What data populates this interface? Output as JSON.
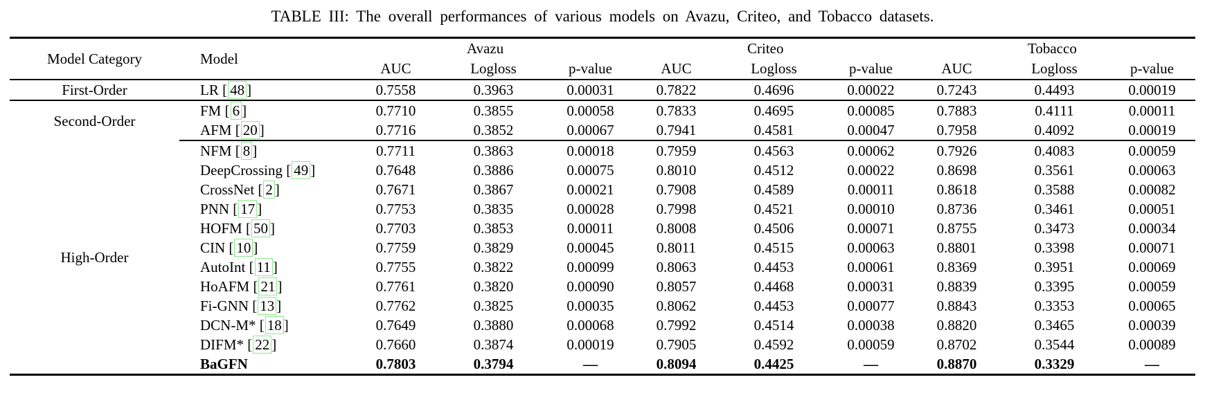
{
  "colors": {
    "citation_box_border": "#8de88d",
    "text": "#000000",
    "background": "#ffffff",
    "rule": "#000000"
  },
  "caption": "TABLE III: The overall performances of various models on Avazu, Criteo, and Tobacco datasets.",
  "table": {
    "headers": {
      "model_category": "Model Category",
      "model": "Model",
      "datasets": [
        "Avazu",
        "Criteo",
        "Tobacco"
      ],
      "metrics": [
        "AUC",
        "Logloss",
        "p-value"
      ]
    },
    "groups": [
      {
        "category": "First-Order",
        "rows": [
          {
            "model": "LR",
            "cite": "48",
            "bold": false,
            "avazu": {
              "auc": "0.7558",
              "logloss": "0.3963",
              "p_value": "0.00031"
            },
            "criteo": {
              "auc": "0.7822",
              "logloss": "0.4696",
              "p_value": "0.00022"
            },
            "tobacco": {
              "auc": "0.7243",
              "logloss": "0.4493",
              "p_value": "0.00019"
            }
          }
        ]
      },
      {
        "category": "Second-Order",
        "rows": [
          {
            "model": "FM",
            "cite": "6",
            "bold": false,
            "avazu": {
              "auc": "0.7710",
              "logloss": "0.3855",
              "p_value": "0.00058"
            },
            "criteo": {
              "auc": "0.7833",
              "logloss": "0.4695",
              "p_value": "0.00085"
            },
            "tobacco": {
              "auc": "0.7883",
              "logloss": "0.4111",
              "p_value": "0.00011"
            }
          },
          {
            "model": "AFM",
            "cite": "20",
            "bold": false,
            "avazu": {
              "auc": "0.7716",
              "logloss": "0.3852",
              "p_value": "0.00067"
            },
            "criteo": {
              "auc": "0.7941",
              "logloss": "0.4581",
              "p_value": "0.00047"
            },
            "tobacco": {
              "auc": "0.7958",
              "logloss": "0.4092",
              "p_value": "0.00019"
            }
          }
        ]
      },
      {
        "category": "High-Order",
        "rows": [
          {
            "model": "NFM",
            "cite": "8",
            "bold": false,
            "avazu": {
              "auc": "0.7711",
              "logloss": "0.3863",
              "p_value": "0.00018"
            },
            "criteo": {
              "auc": "0.7959",
              "logloss": "0.4563",
              "p_value": "0.00062"
            },
            "tobacco": {
              "auc": "0.7926",
              "logloss": "0.4083",
              "p_value": "0.00059"
            }
          },
          {
            "model": "DeepCrossing",
            "cite": "49",
            "bold": false,
            "avazu": {
              "auc": "0.7648",
              "logloss": "0.3886",
              "p_value": "0.00075"
            },
            "criteo": {
              "auc": "0.8010",
              "logloss": "0.4512",
              "p_value": "0.00022"
            },
            "tobacco": {
              "auc": "0.8698",
              "logloss": "0.3561",
              "p_value": "0.00063"
            }
          },
          {
            "model": "CrossNet",
            "cite": "2",
            "bold": false,
            "avazu": {
              "auc": "0.7671",
              "logloss": "0.3867",
              "p_value": "0.00021"
            },
            "criteo": {
              "auc": "0.7908",
              "logloss": "0.4589",
              "p_value": "0.00011"
            },
            "tobacco": {
              "auc": "0.8618",
              "logloss": "0.3588",
              "p_value": "0.00082"
            }
          },
          {
            "model": "PNN",
            "cite": "17",
            "bold": false,
            "avazu": {
              "auc": "0.7753",
              "logloss": "0.3835",
              "p_value": "0.00028"
            },
            "criteo": {
              "auc": "0.7998",
              "logloss": "0.4521",
              "p_value": "0.00010"
            },
            "tobacco": {
              "auc": "0.8736",
              "logloss": "0.3461",
              "p_value": "0.00051"
            }
          },
          {
            "model": "HOFM",
            "cite": "50",
            "bold": false,
            "avazu": {
              "auc": "0.7703",
              "logloss": "0.3853",
              "p_value": "0.00011"
            },
            "criteo": {
              "auc": "0.8008",
              "logloss": "0.4506",
              "p_value": "0.00071"
            },
            "tobacco": {
              "auc": "0.8755",
              "logloss": "0.3473",
              "p_value": "0.00034"
            }
          },
          {
            "model": "CIN",
            "cite": "10",
            "bold": false,
            "avazu": {
              "auc": "0.7759",
              "logloss": "0.3829",
              "p_value": "0.00045"
            },
            "criteo": {
              "auc": "0.8011",
              "logloss": "0.4515",
              "p_value": "0.00063"
            },
            "tobacco": {
              "auc": "0.8801",
              "logloss": "0.3398",
              "p_value": "0.00071"
            }
          },
          {
            "model": "AutoInt",
            "cite": "11",
            "bold": false,
            "avazu": {
              "auc": "0.7755",
              "logloss": "0.3822",
              "p_value": "0.00099"
            },
            "criteo": {
              "auc": "0.8063",
              "logloss": "0.4453",
              "p_value": "0.00061"
            },
            "tobacco": {
              "auc": "0.8369",
              "logloss": "0.3951",
              "p_value": "0.00069"
            }
          },
          {
            "model": "HoAFM",
            "cite": "21",
            "bold": false,
            "avazu": {
              "auc": "0.7761",
              "logloss": "0.3820",
              "p_value": "0.00090"
            },
            "criteo": {
              "auc": "0.8057",
              "logloss": "0.4468",
              "p_value": "0.00031"
            },
            "tobacco": {
              "auc": "0.8839",
              "logloss": "0.3395",
              "p_value": "0.00059"
            }
          },
          {
            "model": "Fi-GNN",
            "cite": "13",
            "bold": false,
            "avazu": {
              "auc": "0.7762",
              "logloss": "0.3825",
              "p_value": "0.00035"
            },
            "criteo": {
              "auc": "0.8062",
              "logloss": "0.4453",
              "p_value": "0.00077"
            },
            "tobacco": {
              "auc": "0.8843",
              "logloss": "0.3353",
              "p_value": "0.00065"
            }
          },
          {
            "model": "DCN-M*",
            "cite": "18",
            "bold": false,
            "avazu": {
              "auc": "0.7649",
              "logloss": "0.3880",
              "p_value": "0.00068"
            },
            "criteo": {
              "auc": "0.7992",
              "logloss": "0.4514",
              "p_value": "0.00038"
            },
            "tobacco": {
              "auc": "0.8820",
              "logloss": "0.3465",
              "p_value": "0.00039"
            }
          },
          {
            "model": "DIFM*",
            "cite": "22",
            "bold": false,
            "avazu": {
              "auc": "0.7660",
              "logloss": "0.3874",
              "p_value": "0.00019"
            },
            "criteo": {
              "auc": "0.7905",
              "logloss": "0.4592",
              "p_value": "0.00059"
            },
            "tobacco": {
              "auc": "0.8702",
              "logloss": "0.3544",
              "p_value": "0.00089"
            }
          },
          {
            "model": "BaGFN",
            "cite": null,
            "bold": true,
            "avazu": {
              "auc": "0.7803",
              "logloss": "0.3794",
              "p_value": "—"
            },
            "criteo": {
              "auc": "0.8094",
              "logloss": "0.4425",
              "p_value": "—"
            },
            "tobacco": {
              "auc": "0.8870",
              "logloss": "0.3329",
              "p_value": "—"
            }
          }
        ]
      }
    ]
  }
}
